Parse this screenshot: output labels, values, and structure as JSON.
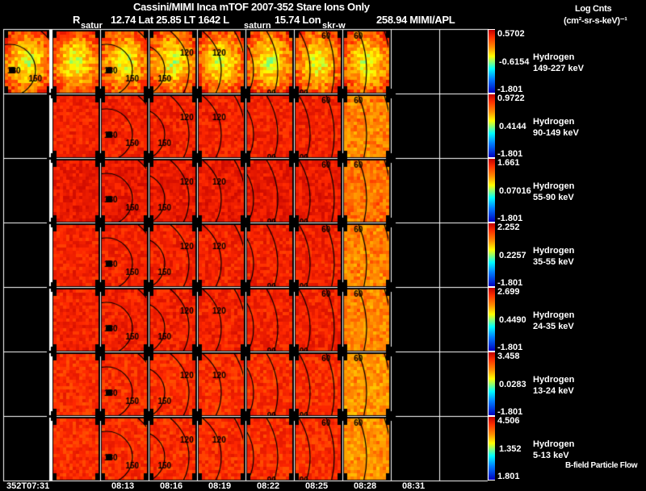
{
  "header": {
    "title": "Cassini/MIMI Inca mTOF  2007-352   Stare   Ions Only",
    "r_label": "R",
    "r_value": "12.74 Lat 25.85 LT 1642 L",
    "lon_value": "15.74 Lon",
    "lon_extra": "258.94  MIMI/APL"
  },
  "units": {
    "line1": "Log Cnts",
    "line2": "(cm²-sr-s-keV)⁻¹"
  },
  "footer_note": "B-field Particle Flow",
  "panel_labels": [
    "satur",
    "saturn",
    "skr-w"
  ],
  "chart_data": {
    "type": "heatmap",
    "title": "Cassini/MIMI Inca mTOF 2007-352 Stare Ions Only",
    "time_ticks": [
      "352T07:31",
      "08:13",
      "08:16",
      "08:19",
      "08:22",
      "08:25",
      "08:28",
      "08:31"
    ],
    "contour_levels": [
      "180",
      "150",
      "120",
      "90",
      "60",
      "30"
    ],
    "rows": [
      {
        "species": "Hydrogen",
        "energy": "149-227 keV",
        "max": "0.5702",
        "mid": "-0.6154",
        "min": "-1.801",
        "level": 0.55
      },
      {
        "species": "Hydrogen",
        "energy": "90-149 keV",
        "max": "0.9722",
        "mid": "0.4144",
        "min": "-1.801",
        "level": 0.9
      },
      {
        "species": "Hydrogen",
        "energy": "55-90 keV",
        "max": "1.661",
        "mid": "0.07016",
        "min": "-1.801",
        "level": 0.92
      },
      {
        "species": "Hydrogen",
        "energy": "35-55 keV",
        "max": "2.252",
        "mid": "0.2257",
        "min": "-1.801",
        "level": 0.9
      },
      {
        "species": "Hydrogen",
        "energy": "24-35 keV",
        "max": "2.699",
        "mid": "0.4490",
        "min": "-1.801",
        "level": 0.9
      },
      {
        "species": "Hydrogen",
        "energy": "13-24 keV",
        "max": "3.458",
        "mid": "0.0283",
        "min": "-1.801",
        "level": 0.88
      },
      {
        "species": "Hydrogen",
        "energy": "5-13 keV",
        "max": "4.506",
        "mid": "1.352",
        "min": "1.801",
        "level": 0.88
      }
    ]
  }
}
